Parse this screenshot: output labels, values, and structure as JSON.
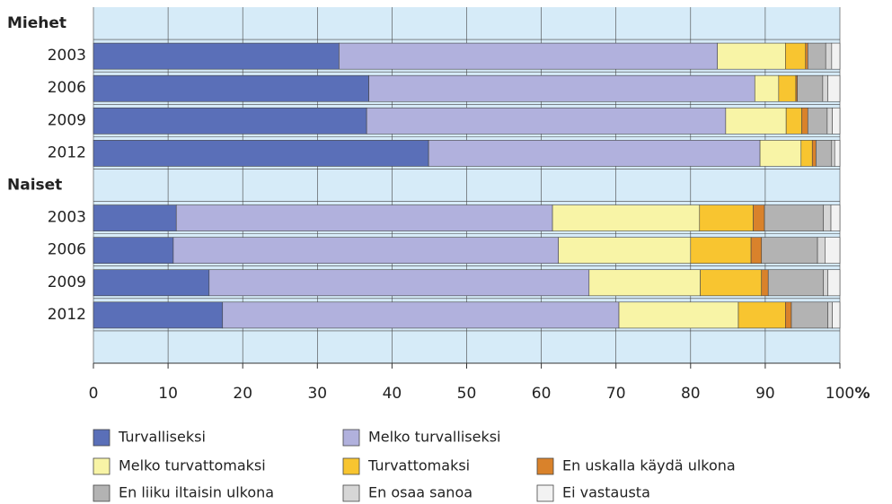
{
  "chart_data": {
    "type": "stacked-bar-horizontal",
    "x_label": "%",
    "categories": [
      "Miehet",
      "2003",
      "2006",
      "2009",
      "2012",
      "Naiset",
      "2003",
      "2006",
      "2009",
      "2012",
      null
    ],
    "series": [
      {
        "name": "Turvalliseksi",
        "color": "#5a6fb8",
        "values": [
          null,
          32.9,
          36.9,
          36.6,
          44.9,
          null,
          11.1,
          10.7,
          15.5,
          17.3,
          null
        ]
      },
      {
        "name": "Melko turvalliseksi",
        "color": "#b1b1dd",
        "values": [
          null,
          50.7,
          51.7,
          48.1,
          44.4,
          null,
          50.4,
          51.6,
          50.9,
          53.1,
          null
        ]
      },
      {
        "name": "Melko turvattomaksi",
        "color": "#f8f4a6",
        "values": [
          null,
          9.1,
          3.2,
          8.1,
          5.5,
          null,
          19.7,
          17.7,
          14.9,
          16.0,
          null
        ]
      },
      {
        "name": "Turvattomaksi",
        "color": "#f8c530",
        "values": [
          null,
          2.7,
          2.3,
          2.1,
          1.5,
          null,
          7.2,
          8.1,
          8.2,
          6.3,
          null
        ]
      },
      {
        "name": "En uskalla käydä ulkona",
        "color": "#d9822b",
        "values": [
          null,
          0.3,
          0.2,
          0.8,
          0.5,
          null,
          1.5,
          1.4,
          0.9,
          0.8,
          null
        ]
      },
      {
        "name": "En liiku iltaisin ulkona",
        "color": "#b3b3b3",
        "values": [
          null,
          2.4,
          3.4,
          2.6,
          2.1,
          null,
          7.9,
          7.5,
          7.4,
          4.9,
          null
        ]
      },
      {
        "name": "En osaa sanoa",
        "color": "#d6d6d6",
        "values": [
          null,
          0.8,
          0.7,
          0.7,
          0.4,
          null,
          1.0,
          1.0,
          0.6,
          0.6,
          null
        ]
      },
      {
        "name": "Ei vastausta",
        "color": "#f2f2f2",
        "values": [
          null,
          1.1,
          1.6,
          1.0,
          0.7,
          null,
          1.2,
          2.0,
          1.6,
          1.0,
          null
        ]
      }
    ],
    "xlim": [
      0,
      100
    ],
    "xticks": [
      0,
      10,
      20,
      30,
      40,
      50,
      60,
      70,
      80,
      90,
      100
    ],
    "grid": true
  }
}
